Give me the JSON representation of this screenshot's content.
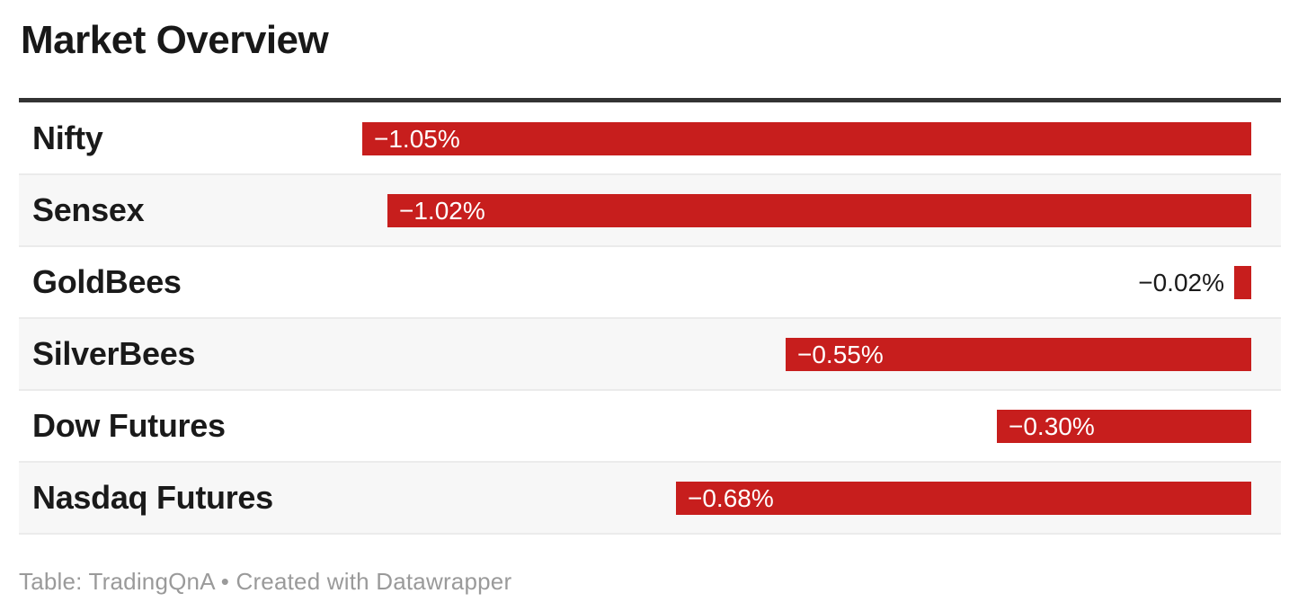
{
  "header": {
    "title": "Market Overview"
  },
  "footer": {
    "credit": "Table: TradingQnA • Created with Datawrapper"
  },
  "colors": {
    "bar": "#c71e1d",
    "alt_row_bg": "#f7f7f7",
    "divider": "#333333",
    "row_border": "#ebebeb",
    "value_inside_text": "#ffffff",
    "value_outside_text": "#1a1a1a",
    "footer_text": "#9a9a9a"
  },
  "rows": [
    {
      "label": "Nifty",
      "value": -1.05,
      "value_label": "−1.05%"
    },
    {
      "label": "Sensex",
      "value": -1.02,
      "value_label": "−1.02%"
    },
    {
      "label": "GoldBees",
      "value": -0.02,
      "value_label": "−0.02%"
    },
    {
      "label": "SilverBees",
      "value": -0.55,
      "value_label": "−0.55%"
    },
    {
      "label": "Dow Futures",
      "value": -0.3,
      "value_label": "−0.30%"
    },
    {
      "label": "Nasdaq Futures",
      "value": -0.68,
      "value_label": "−0.68%"
    }
  ],
  "chart_data": {
    "type": "bar",
    "orientation": "horizontal",
    "title": "Market Overview",
    "categories": [
      "Nifty",
      "Sensex",
      "GoldBees",
      "SilverBees",
      "Dow Futures",
      "Nasdaq Futures"
    ],
    "values": [
      -1.05,
      -1.02,
      -0.02,
      -0.55,
      -0.3,
      -0.68
    ],
    "value_labels": [
      "−1.05%",
      "−1.02%",
      "−0.02%",
      "−0.55%",
      "−0.30%",
      "−0.68%"
    ],
    "unit": "%",
    "xlim": [
      -1.05,
      0
    ],
    "bar_color": "#c71e1d",
    "grid": false,
    "legend": false,
    "notes": "bars right-aligned at zero line, negative values extend left, alternating row stripes"
  }
}
